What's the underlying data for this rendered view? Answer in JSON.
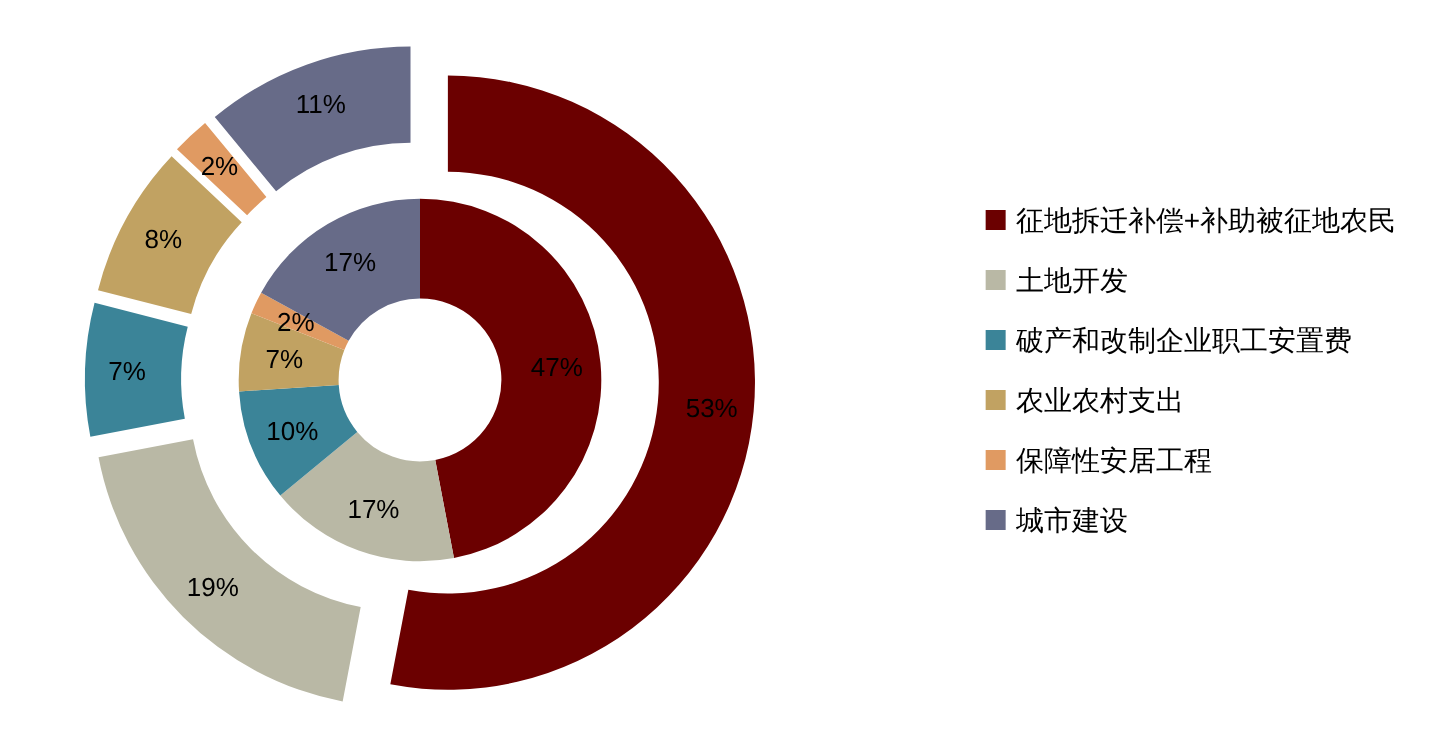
{
  "chart_data": {
    "type": "donut",
    "categories": [
      "征地拆迁补偿+补助被征地农民",
      "土地开发",
      "破产和改制企业职工安置费",
      "农业农村支出",
      "保障性安居工程",
      "城市建设"
    ],
    "colors": [
      "#6b0000",
      "#b9b8a5",
      "#3b8498",
      "#c1a262",
      "#e09a62",
      "#676b88"
    ],
    "series": [
      {
        "values": [
          47,
          17,
          10,
          7,
          2,
          17
        ],
        "value_labels": [
          "47%",
          "17%",
          "10%",
          "7%",
          "2%",
          "17%"
        ]
      },
      {
        "values": [
          53,
          19,
          7,
          8,
          2,
          11
        ],
        "value_labels": [
          "53%",
          "19%",
          "7%",
          "8%",
          "2%",
          "11%"
        ]
      }
    ],
    "legend": "right"
  }
}
